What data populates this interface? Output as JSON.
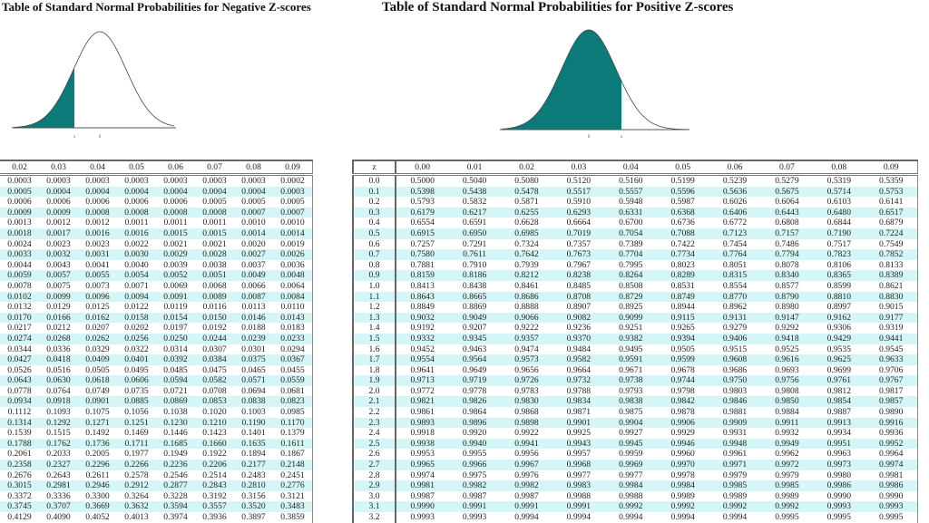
{
  "left": {
    "title": "Table of Standard Normal Probabilities for Negative Z-scores",
    "curve_labels": {
      "z": "z",
      "zero": "0"
    },
    "shade_side": "left",
    "columns": [
      "0.02",
      "0.03",
      "0.04",
      "0.05",
      "0.06",
      "0.07",
      "0.08",
      "0.09"
    ],
    "rows": [
      [
        "0.0003",
        "0.0003",
        "0.0003",
        "0.0003",
        "0.0003",
        "0.0003",
        "0.0003",
        "0.0002"
      ],
      [
        "0.0005",
        "0.0004",
        "0.0004",
        "0.0004",
        "0.0004",
        "0.0004",
        "0.0004",
        "0.0003"
      ],
      [
        "0.0006",
        "0.0006",
        "0.0006",
        "0.0006",
        "0.0006",
        "0.0005",
        "0.0005",
        "0.0005"
      ],
      [
        "0.0009",
        "0.0009",
        "0.0008",
        "0.0008",
        "0.0008",
        "0.0008",
        "0.0007",
        "0.0007"
      ],
      [
        "0.0013",
        "0.0012",
        "0.0012",
        "0.0011",
        "0.0011",
        "0.0011",
        "0.0010",
        "0.0010"
      ],
      [
        "0.0018",
        "0.0017",
        "0.0016",
        "0.0016",
        "0.0015",
        "0.0015",
        "0.0014",
        "0.0014"
      ],
      [
        "0.0024",
        "0.0023",
        "0.0023",
        "0.0022",
        "0.0021",
        "0.0021",
        "0.0020",
        "0.0019"
      ],
      [
        "0.0033",
        "0.0032",
        "0.0031",
        "0.0030",
        "0.0029",
        "0.0028",
        "0.0027",
        "0.0026"
      ],
      [
        "0.0044",
        "0.0043",
        "0.0041",
        "0.0040",
        "0.0039",
        "0.0038",
        "0.0037",
        "0.0036"
      ],
      [
        "0.0059",
        "0.0057",
        "0.0055",
        "0.0054",
        "0.0052",
        "0.0051",
        "0.0049",
        "0.0048"
      ],
      [
        "0.0078",
        "0.0075",
        "0.0073",
        "0.0071",
        "0.0069",
        "0.0068",
        "0.0066",
        "0.0064"
      ],
      [
        "0.0102",
        "0.0099",
        "0.0096",
        "0.0094",
        "0.0091",
        "0.0089",
        "0.0087",
        "0.0084"
      ],
      [
        "0.0132",
        "0.0129",
        "0.0125",
        "0.0122",
        "0.0119",
        "0.0116",
        "0.0113",
        "0.0110"
      ],
      [
        "0.0170",
        "0.0166",
        "0.0162",
        "0.0158",
        "0.0154",
        "0.0150",
        "0.0146",
        "0.0143"
      ],
      [
        "0.0217",
        "0.0212",
        "0.0207",
        "0.0202",
        "0.0197",
        "0.0192",
        "0.0188",
        "0.0183"
      ],
      [
        "0.0274",
        "0.0268",
        "0.0262",
        "0.0256",
        "0.0250",
        "0.0244",
        "0.0239",
        "0.0233"
      ],
      [
        "0.0344",
        "0.0336",
        "0.0329",
        "0.0322",
        "0.0314",
        "0.0307",
        "0.0301",
        "0.0294"
      ],
      [
        "0.0427",
        "0.0418",
        "0.0409",
        "0.0401",
        "0.0392",
        "0.0384",
        "0.0375",
        "0.0367"
      ],
      [
        "0.0526",
        "0.0516",
        "0.0505",
        "0.0495",
        "0.0485",
        "0.0475",
        "0.0465",
        "0.0455"
      ],
      [
        "0.0643",
        "0.0630",
        "0.0618",
        "0.0606",
        "0.0594",
        "0.0582",
        "0.0571",
        "0.0559"
      ],
      [
        "0.0778",
        "0.0764",
        "0.0749",
        "0.0735",
        "0.0721",
        "0.0708",
        "0.0694",
        "0.0681"
      ],
      [
        "0.0934",
        "0.0918",
        "0.0901",
        "0.0885",
        "0.0869",
        "0.0853",
        "0.0838",
        "0.0823"
      ],
      [
        "0.1112",
        "0.1093",
        "0.1075",
        "0.1056",
        "0.1038",
        "0.1020",
        "0.1003",
        "0.0985"
      ],
      [
        "0.1314",
        "0.1292",
        "0.1271",
        "0.1251",
        "0.1230",
        "0.1210",
        "0.1190",
        "0.1170"
      ],
      [
        "0.1539",
        "0.1515",
        "0.1492",
        "0.1469",
        "0.1446",
        "0.1423",
        "0.1401",
        "0.1379"
      ],
      [
        "0.1788",
        "0.1762",
        "0.1736",
        "0.1711",
        "0.1685",
        "0.1660",
        "0.1635",
        "0.1611"
      ],
      [
        "0.2061",
        "0.2033",
        "0.2005",
        "0.1977",
        "0.1949",
        "0.1922",
        "0.1894",
        "0.1867"
      ],
      [
        "0.2358",
        "0.2327",
        "0.2296",
        "0.2266",
        "0.2236",
        "0.2206",
        "0.2177",
        "0.2148"
      ],
      [
        "0.2676",
        "0.2643",
        "0.2611",
        "0.2578",
        "0.2546",
        "0.2514",
        "0.2483",
        "0.2451"
      ],
      [
        "0.3015",
        "0.2981",
        "0.2946",
        "0.2912",
        "0.2877",
        "0.2843",
        "0.2810",
        "0.2776"
      ],
      [
        "0.3372",
        "0.3336",
        "0.3300",
        "0.3264",
        "0.3228",
        "0.3192",
        "0.3156",
        "0.3121"
      ],
      [
        "0.3745",
        "0.3707",
        "0.3669",
        "0.3632",
        "0.3594",
        "0.3557",
        "0.3520",
        "0.3483"
      ],
      [
        "0.4129",
        "0.4090",
        "0.4052",
        "0.4013",
        "0.3974",
        "0.3936",
        "0.3897",
        "0.3859"
      ]
    ]
  },
  "right": {
    "title": "Table of Standard Normal Probabilities for Positive Z-scores",
    "curve_labels": {
      "z": "z",
      "zero": "0"
    },
    "shade_side": "left",
    "z_header": "z",
    "columns": [
      "0.00",
      "0.01",
      "0.02",
      "0.03",
      "0.04",
      "0.05",
      "0.06",
      "0.07",
      "0.08",
      "0.09"
    ],
    "z": [
      "0.0",
      "0.1",
      "0.2",
      "0.3",
      "0.4",
      "0.5",
      "0.6",
      "0.7",
      "0.8",
      "0.9",
      "1.0",
      "1.1",
      "1.2",
      "1.3",
      "1.4",
      "1.5",
      "1.6",
      "1.7",
      "1.8",
      "1.9",
      "2.0",
      "2.1",
      "2.2",
      "2.3",
      "2.4",
      "2.5",
      "2.6",
      "2.7",
      "2.8",
      "2.9",
      "3.0",
      "3.1",
      "3.2"
    ],
    "rows": [
      [
        "0.5000",
        "0.5040",
        "0.5080",
        "0.5120",
        "0.5160",
        "0.5199",
        "0.5239",
        "0.5279",
        "0.5319",
        "0.5359"
      ],
      [
        "0.5398",
        "0.5438",
        "0.5478",
        "0.5517",
        "0.5557",
        "0.5596",
        "0.5636",
        "0.5675",
        "0.5714",
        "0.5753"
      ],
      [
        "0.5793",
        "0.5832",
        "0.5871",
        "0.5910",
        "0.5948",
        "0.5987",
        "0.6026",
        "0.6064",
        "0.6103",
        "0.6141"
      ],
      [
        "0.6179",
        "0.6217",
        "0.6255",
        "0.6293",
        "0.6331",
        "0.6368",
        "0.6406",
        "0.6443",
        "0.6480",
        "0.6517"
      ],
      [
        "0.6554",
        "0.6591",
        "0.6628",
        "0.6664",
        "0.6700",
        "0.6736",
        "0.6772",
        "0.6808",
        "0.6844",
        "0.6879"
      ],
      [
        "0.6915",
        "0.6950",
        "0.6985",
        "0.7019",
        "0.7054",
        "0.7088",
        "0.7123",
        "0.7157",
        "0.7190",
        "0.7224"
      ],
      [
        "0.7257",
        "0.7291",
        "0.7324",
        "0.7357",
        "0.7389",
        "0.7422",
        "0.7454",
        "0.7486",
        "0.7517",
        "0.7549"
      ],
      [
        "0.7580",
        "0.7611",
        "0.7642",
        "0.7673",
        "0.7704",
        "0.7734",
        "0.7764",
        "0.7794",
        "0.7823",
        "0.7852"
      ],
      [
        "0.7881",
        "0.7910",
        "0.7939",
        "0.7967",
        "0.7995",
        "0.8023",
        "0.8051",
        "0.8078",
        "0.8106",
        "0.8133"
      ],
      [
        "0.8159",
        "0.8186",
        "0.8212",
        "0.8238",
        "0.8264",
        "0.8289",
        "0.8315",
        "0.8340",
        "0.8365",
        "0.8389"
      ],
      [
        "0.8413",
        "0.8438",
        "0.8461",
        "0.8485",
        "0.8508",
        "0.8531",
        "0.8554",
        "0.8577",
        "0.8599",
        "0.8621"
      ],
      [
        "0.8643",
        "0.8665",
        "0.8686",
        "0.8708",
        "0.8729",
        "0.8749",
        "0.8770",
        "0.8790",
        "0.8810",
        "0.8830"
      ],
      [
        "0.8849",
        "0.8869",
        "0.8888",
        "0.8907",
        "0.8925",
        "0.8944",
        "0.8962",
        "0.8980",
        "0.8997",
        "0.9015"
      ],
      [
        "0.9032",
        "0.9049",
        "0.9066",
        "0.9082",
        "0.9099",
        "0.9115",
        "0.9131",
        "0.9147",
        "0.9162",
        "0.9177"
      ],
      [
        "0.9192",
        "0.9207",
        "0.9222",
        "0.9236",
        "0.9251",
        "0.9265",
        "0.9279",
        "0.9292",
        "0.9306",
        "0.9319"
      ],
      [
        "0.9332",
        "0.9345",
        "0.9357",
        "0.9370",
        "0.9382",
        "0.9394",
        "0.9406",
        "0.9418",
        "0.9429",
        "0.9441"
      ],
      [
        "0.9452",
        "0.9463",
        "0.9474",
        "0.9484",
        "0.9495",
        "0.9505",
        "0.9515",
        "0.9525",
        "0.9535",
        "0.9545"
      ],
      [
        "0.9554",
        "0.9564",
        "0.9573",
        "0.9582",
        "0.9591",
        "0.9599",
        "0.9608",
        "0.9616",
        "0.9625",
        "0.9633"
      ],
      [
        "0.9641",
        "0.9649",
        "0.9656",
        "0.9664",
        "0.9671",
        "0.9678",
        "0.9686",
        "0.9693",
        "0.9699",
        "0.9706"
      ],
      [
        "0.9713",
        "0.9719",
        "0.9726",
        "0.9732",
        "0.9738",
        "0.9744",
        "0.9750",
        "0.9756",
        "0.9761",
        "0.9767"
      ],
      [
        "0.9772",
        "0.9778",
        "0.9783",
        "0.9788",
        "0.9793",
        "0.9798",
        "0.9803",
        "0.9808",
        "0.9812",
        "0.9817"
      ],
      [
        "0.9821",
        "0.9826",
        "0.9830",
        "0.9834",
        "0.9838",
        "0.9842",
        "0.9846",
        "0.9850",
        "0.9854",
        "0.9857"
      ],
      [
        "0.9861",
        "0.9864",
        "0.9868",
        "0.9871",
        "0.9875",
        "0.9878",
        "0.9881",
        "0.9884",
        "0.9887",
        "0.9890"
      ],
      [
        "0.9893",
        "0.9896",
        "0.9898",
        "0.9901",
        "0.9904",
        "0.9906",
        "0.9909",
        "0.9911",
        "0.9913",
        "0.9916"
      ],
      [
        "0.9918",
        "0.9920",
        "0.9922",
        "0.9925",
        "0.9927",
        "0.9929",
        "0.9931",
        "0.9932",
        "0.9934",
        "0.9936"
      ],
      [
        "0.9938",
        "0.9940",
        "0.9941",
        "0.9943",
        "0.9945",
        "0.9946",
        "0.9948",
        "0.9949",
        "0.9951",
        "0.9952"
      ],
      [
        "0.9953",
        "0.9955",
        "0.9956",
        "0.9957",
        "0.9959",
        "0.9960",
        "0.9961",
        "0.9962",
        "0.9963",
        "0.9964"
      ],
      [
        "0.9965",
        "0.9966",
        "0.9967",
        "0.9968",
        "0.9969",
        "0.9970",
        "0.9971",
        "0.9972",
        "0.9973",
        "0.9974"
      ],
      [
        "0.9974",
        "0.9975",
        "0.9976",
        "0.9977",
        "0.9977",
        "0.9978",
        "0.9979",
        "0.9979",
        "0.9980",
        "0.9981"
      ],
      [
        "0.9981",
        "0.9982",
        "0.9982",
        "0.9983",
        "0.9984",
        "0.9984",
        "0.9985",
        "0.9985",
        "0.9986",
        "0.9986"
      ],
      [
        "0.9987",
        "0.9987",
        "0.9987",
        "0.9988",
        "0.9988",
        "0.9989",
        "0.9989",
        "0.9989",
        "0.9990",
        "0.9990"
      ],
      [
        "0.9990",
        "0.9991",
        "0.9991",
        "0.9991",
        "0.9992",
        "0.9992",
        "0.9992",
        "0.9992",
        "0.9993",
        "0.9993"
      ],
      [
        "0.9993",
        "0.9993",
        "0.9994",
        "0.9994",
        "0.9994",
        "0.9994",
        "0.9994",
        "0.9995",
        "0.9995",
        "0.9995"
      ]
    ]
  },
  "colors": {
    "shade": "#0c7a78",
    "stripe": "#d5f6f6",
    "curve": "#444444"
  }
}
